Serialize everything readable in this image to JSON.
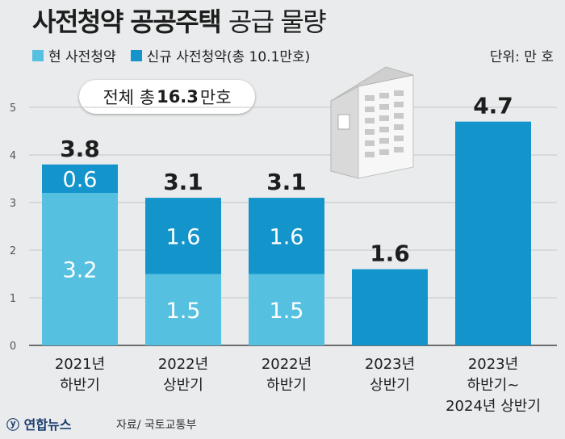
{
  "title": {
    "bold": "사전청약 공공주택",
    "light": "공급 물량"
  },
  "legend": [
    {
      "label": "현 사전청약",
      "color": "#56c0e0"
    },
    {
      "label": "신규 사전청약(총 10.1만호)",
      "color": "#1395cc"
    }
  ],
  "unit": "단위: 만 호",
  "total": {
    "prefix": "전체 총",
    "value": "16.3",
    "suffix": "만호"
  },
  "chart_data": {
    "type": "bar",
    "stacked": true,
    "categories": [
      [
        "2021년",
        "하반기"
      ],
      [
        "2022년",
        "상반기"
      ],
      [
        "2022년",
        "하반기"
      ],
      [
        "2023년",
        "상반기"
      ],
      [
        "2023년",
        "하반기~",
        "2024년 상반기"
      ]
    ],
    "series": [
      {
        "name": "현 사전청약",
        "color": "#56c0e0",
        "values": [
          3.2,
          1.5,
          1.5,
          0,
          0
        ]
      },
      {
        "name": "신규 사전청약(총 10.1만호)",
        "color": "#1395cc",
        "values": [
          0.6,
          1.6,
          1.6,
          1.6,
          4.7
        ]
      }
    ],
    "totals": [
      3.8,
      3.1,
      3.1,
      1.6,
      4.7
    ],
    "yticks": [
      0,
      1,
      2,
      3,
      4,
      5
    ],
    "ylim": [
      0,
      5
    ],
    "grid": true
  },
  "icon": "apartment-building-icon",
  "source": {
    "logo": "연합뉴스",
    "text": "자료/ 국토교통부"
  }
}
